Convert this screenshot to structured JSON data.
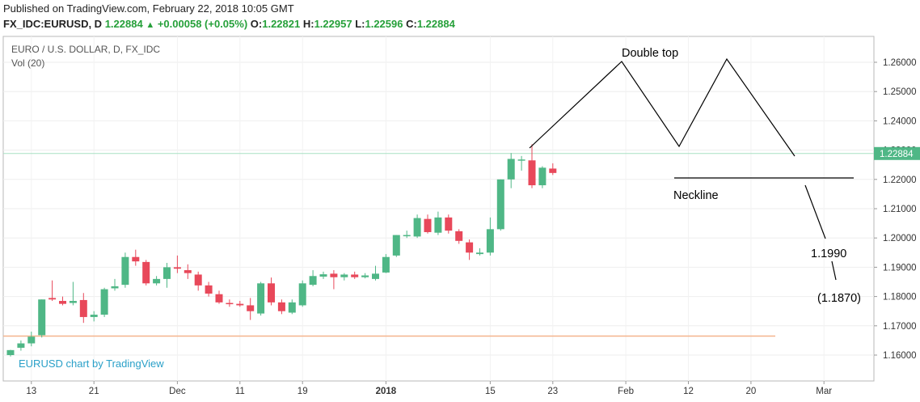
{
  "header": {
    "published": "Published on TradingView.com, February 22, 2018 10:05 GMT",
    "symbol": "FX_IDC:EURUSD, D",
    "last": "1.22884",
    "change": "+0.00058 (+0.05%)",
    "o_label": "O:",
    "o_value": "1.22821",
    "h_label": "H:",
    "h_value": "1.22957",
    "l_label": "L:",
    "l_value": "1.22596",
    "c_label": "C:",
    "c_value": "1.22884"
  },
  "legend": {
    "title": "EURO / U.S. DOLLAR, D, FX_IDC",
    "volume": "Vol (20)"
  },
  "watermark": "EURUSD chart by TradingView",
  "colors": {
    "up": "#4fb786",
    "down": "#e8485a",
    "pattern": "#000000",
    "current_line": "#a8e0c4",
    "support_line": "#f5b48c",
    "current_label_bg": "#4fb786",
    "watermark": "#2aa0c8"
  },
  "chart_data": {
    "type": "candlestick",
    "title": "EURO / U.S. DOLLAR, D, FX_IDC",
    "ylim": [
      1.155,
      1.268
    ],
    "y_ticks": [
      "1.16000",
      "1.17000",
      "1.18000",
      "1.19000",
      "1.20000",
      "1.21000",
      "1.22000",
      "1.23000",
      "1.24000",
      "1.25000",
      "1.26000"
    ],
    "x_ticks": [
      {
        "label": "13",
        "i": 2
      },
      {
        "label": "21",
        "i": 8
      },
      {
        "label": "Dec",
        "i": 16
      },
      {
        "label": "11",
        "i": 22
      },
      {
        "label": "19",
        "i": 28
      },
      {
        "label": "2018",
        "i": 36
      },
      {
        "label": "15",
        "i": 46
      },
      {
        "label": "23",
        "i": 52
      },
      {
        "label": "Feb",
        "i": 59
      },
      {
        "label": "12",
        "i": 65
      },
      {
        "label": "20",
        "i": 71
      },
      {
        "label": "Mar",
        "i": 78
      }
    ],
    "x_positions_count": 82,
    "current_price": "1.22884",
    "support_level": 1.1665,
    "candles": [
      {
        "o": 1.16,
        "h": 1.1618,
        "l": 1.1595,
        "c": 1.1617
      },
      {
        "o": 1.1625,
        "h": 1.165,
        "l": 1.1615,
        "c": 1.164
      },
      {
        "o": 1.164,
        "h": 1.168,
        "l": 1.163,
        "c": 1.1663
      },
      {
        "o": 1.1668,
        "h": 1.179,
        "l": 1.166,
        "c": 1.179
      },
      {
        "o": 1.1795,
        "h": 1.1855,
        "l": 1.1785,
        "c": 1.179
      },
      {
        "o": 1.1785,
        "h": 1.18,
        "l": 1.177,
        "c": 1.1775
      },
      {
        "o": 1.1778,
        "h": 1.185,
        "l": 1.177,
        "c": 1.1785
      },
      {
        "o": 1.1788,
        "h": 1.1812,
        "l": 1.171,
        "c": 1.173
      },
      {
        "o": 1.173,
        "h": 1.175,
        "l": 1.1715,
        "c": 1.1738
      },
      {
        "o": 1.1738,
        "h": 1.183,
        "l": 1.173,
        "c": 1.1825
      },
      {
        "o": 1.1828,
        "h": 1.186,
        "l": 1.182,
        "c": 1.1835
      },
      {
        "o": 1.184,
        "h": 1.195,
        "l": 1.183,
        "c": 1.1935
      },
      {
        "o": 1.1935,
        "h": 1.196,
        "l": 1.1905,
        "c": 1.192
      },
      {
        "o": 1.1918,
        "h": 1.1925,
        "l": 1.1838,
        "c": 1.1845
      },
      {
        "o": 1.1845,
        "h": 1.187,
        "l": 1.1838,
        "c": 1.186
      },
      {
        "o": 1.186,
        "h": 1.1915,
        "l": 1.183,
        "c": 1.19
      },
      {
        "o": 1.19,
        "h": 1.194,
        "l": 1.188,
        "c": 1.1895
      },
      {
        "o": 1.189,
        "h": 1.191,
        "l": 1.186,
        "c": 1.188
      },
      {
        "o": 1.1875,
        "h": 1.1885,
        "l": 1.182,
        "c": 1.1838
      },
      {
        "o": 1.1838,
        "h": 1.185,
        "l": 1.18,
        "c": 1.181
      },
      {
        "o": 1.1808,
        "h": 1.182,
        "l": 1.1775,
        "c": 1.178
      },
      {
        "o": 1.1778,
        "h": 1.179,
        "l": 1.1765,
        "c": 1.1775
      },
      {
        "o": 1.1775,
        "h": 1.1785,
        "l": 1.1765,
        "c": 1.177
      },
      {
        "o": 1.177,
        "h": 1.1795,
        "l": 1.172,
        "c": 1.175
      },
      {
        "o": 1.1742,
        "h": 1.185,
        "l": 1.1735,
        "c": 1.1845
      },
      {
        "o": 1.1845,
        "h": 1.1865,
        "l": 1.177,
        "c": 1.178
      },
      {
        "o": 1.178,
        "h": 1.179,
        "l": 1.174,
        "c": 1.175
      },
      {
        "o": 1.1745,
        "h": 1.179,
        "l": 1.174,
        "c": 1.178
      },
      {
        "o": 1.177,
        "h": 1.1855,
        "l": 1.1765,
        "c": 1.1845
      },
      {
        "o": 1.184,
        "h": 1.189,
        "l": 1.1835,
        "c": 1.187
      },
      {
        "o": 1.1868,
        "h": 1.1885,
        "l": 1.186,
        "c": 1.1876
      },
      {
        "o": 1.1878,
        "h": 1.189,
        "l": 1.1825,
        "c": 1.1866
      },
      {
        "o": 1.1866,
        "h": 1.188,
        "l": 1.1855,
        "c": 1.1875
      },
      {
        "o": 1.1875,
        "h": 1.1885,
        "l": 1.186,
        "c": 1.1866
      },
      {
        "o": 1.1866,
        "h": 1.188,
        "l": 1.1862,
        "c": 1.1872
      },
      {
        "o": 1.186,
        "h": 1.1905,
        "l": 1.1855,
        "c": 1.1878
      },
      {
        "o": 1.1882,
        "h": 1.1945,
        "l": 1.188,
        "c": 1.1935
      },
      {
        "o": 1.194,
        "h": 1.201,
        "l": 1.1935,
        "c": 1.201
      },
      {
        "o": 1.2008,
        "h": 1.2025,
        "l": 1.2,
        "c": 1.201
      },
      {
        "o": 1.2005,
        "h": 1.208,
        "l": 1.2,
        "c": 1.2068
      },
      {
        "o": 1.2065,
        "h": 1.208,
        "l": 1.2015,
        "c": 1.202
      },
      {
        "o": 1.2018,
        "h": 1.209,
        "l": 1.201,
        "c": 1.207
      },
      {
        "o": 1.207,
        "h": 1.208,
        "l": 1.2015,
        "c": 1.2025
      },
      {
        "o": 1.2023,
        "h": 1.203,
        "l": 1.198,
        "c": 1.199
      },
      {
        "o": 1.1985,
        "h": 1.1995,
        "l": 1.1925,
        "c": 1.195
      },
      {
        "o": 1.1945,
        "h": 1.1965,
        "l": 1.194,
        "c": 1.195
      },
      {
        "o": 1.195,
        "h": 1.207,
        "l": 1.194,
        "c": 1.203
      },
      {
        "o": 1.203,
        "h": 1.22,
        "l": 1.2025,
        "c": 1.22
      },
      {
        "o": 1.22,
        "h": 1.229,
        "l": 1.217,
        "c": 1.227
      },
      {
        "o": 1.2268,
        "h": 1.228,
        "l": 1.223,
        "c": 1.2268
      },
      {
        "o": 1.2265,
        "h": 1.232,
        "l": 1.217,
        "c": 1.218
      },
      {
        "o": 1.218,
        "h": 1.2245,
        "l": 1.217,
        "c": 1.224
      },
      {
        "o": 1.2237,
        "h": 1.2255,
        "l": 1.2215,
        "c": 1.2222
      }
    ],
    "annotations": [
      "Double top",
      "Neckline",
      "1.1990",
      "(1.1870)"
    ]
  }
}
